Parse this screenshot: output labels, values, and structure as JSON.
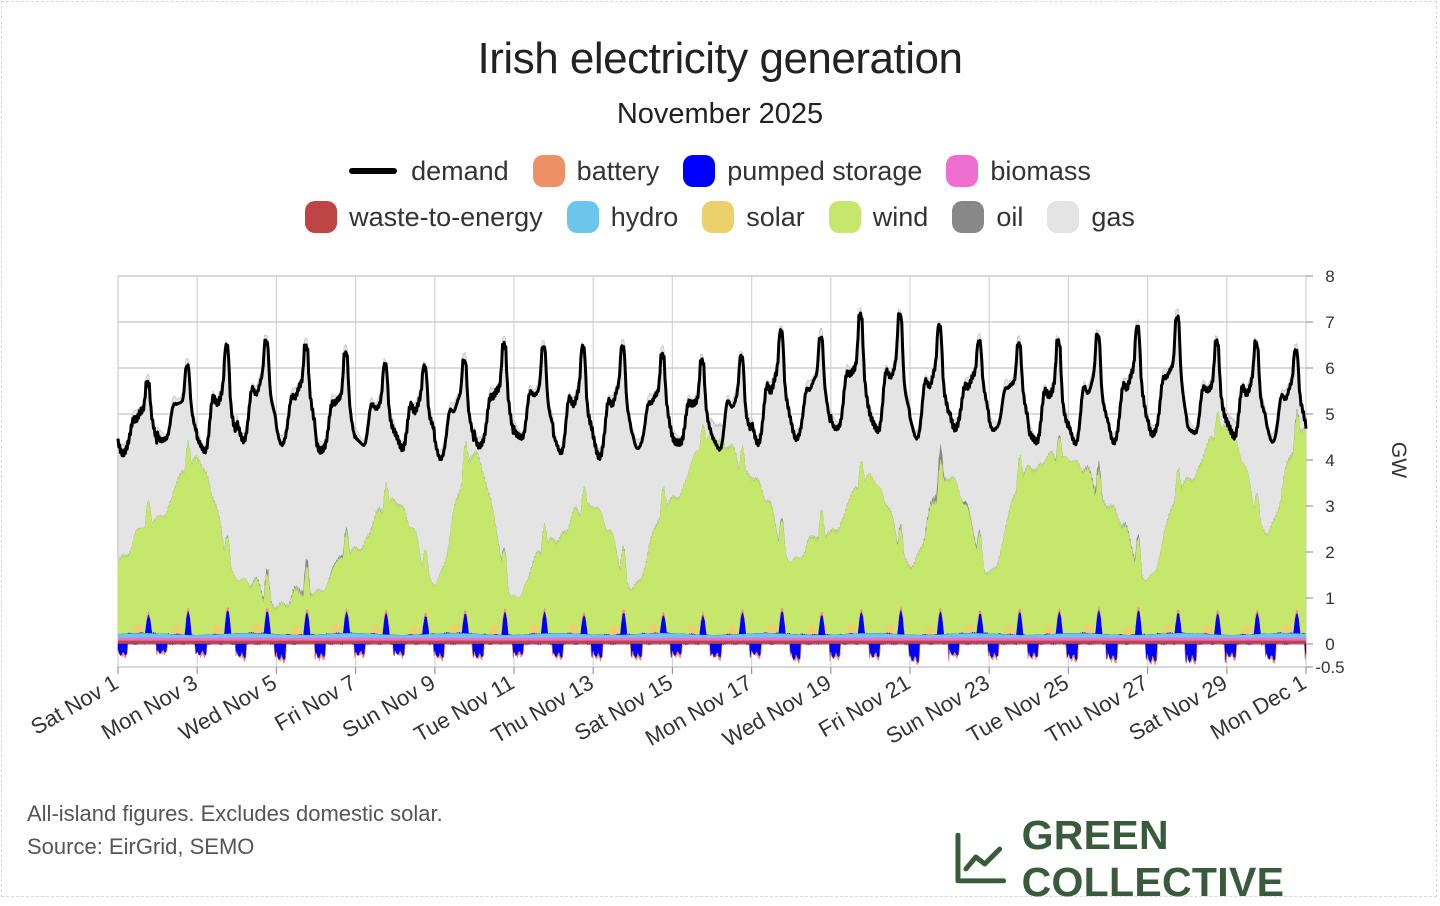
{
  "chart_data": {
    "type": "area",
    "title": "Irish electricity generation",
    "subtitle": "November 2025",
    "ylabel": "GW",
    "ylim": [
      -0.5,
      8
    ],
    "yticks": [
      8,
      7,
      6,
      5,
      4,
      3,
      2,
      1,
      0,
      -0.5
    ],
    "grid": true,
    "legend_position": "top-center",
    "xlim_days": [
      0,
      30
    ],
    "xticks": [
      {
        "label": "Sat Nov 1",
        "day": 0
      },
      {
        "label": "Mon Nov 3",
        "day": 2
      },
      {
        "label": "Wed Nov 5",
        "day": 4
      },
      {
        "label": "Fri Nov 7",
        "day": 6
      },
      {
        "label": "Sun Nov 9",
        "day": 8
      },
      {
        "label": "Tue Nov 11",
        "day": 10
      },
      {
        "label": "Thu Nov 13",
        "day": 12
      },
      {
        "label": "Sat Nov 15",
        "day": 14
      },
      {
        "label": "Mon Nov 17",
        "day": 16
      },
      {
        "label": "Wed Nov 19",
        "day": 18
      },
      {
        "label": "Fri Nov 21",
        "day": 20
      },
      {
        "label": "Sun Nov 23",
        "day": 22
      },
      {
        "label": "Tue Nov 25",
        "day": 24
      },
      {
        "label": "Thu Nov 27",
        "day": 26
      },
      {
        "label": "Sat Nov 29",
        "day": 28
      },
      {
        "label": "Mon Dec 1",
        "day": 30
      }
    ],
    "legend": [
      {
        "name": "demand",
        "color": "#000000",
        "kind": "line"
      },
      {
        "name": "battery",
        "color": "#ee9066"
      },
      {
        "name": "pumped storage",
        "color": "#0000ff"
      },
      {
        "name": "biomass",
        "color": "#ee6ecf"
      },
      {
        "name": "waste-to-energy",
        "color": "#bf4545"
      },
      {
        "name": "hydro",
        "color": "#6cc6ec"
      },
      {
        "name": "solar",
        "color": "#ebd06b"
      },
      {
        "name": "wind",
        "color": "#c5e86c"
      },
      {
        "name": "oil",
        "color": "#888888"
      },
      {
        "name": "gas",
        "color": "#e4e4e4"
      }
    ],
    "daily": {
      "days": [
        0,
        1,
        2,
        3,
        4,
        5,
        6,
        7,
        8,
        9,
        10,
        11,
        12,
        13,
        14,
        15,
        16,
        17,
        18,
        19,
        20,
        21,
        22,
        23,
        24,
        25,
        26,
        27,
        28,
        29,
        30
      ],
      "demand_peak": [
        5.7,
        6.0,
        6.4,
        6.6,
        6.5,
        6.3,
        6.0,
        6.0,
        6.2,
        6.5,
        6.4,
        6.4,
        6.5,
        6.3,
        6.1,
        6.2,
        6.8,
        6.7,
        7.1,
        7.1,
        6.9,
        6.6,
        6.5,
        6.5,
        6.7,
        6.9,
        7.1,
        6.5,
        6.5,
        6.4,
        6.5
      ],
      "demand_min": [
        3.9,
        4.1,
        3.8,
        4.1,
        4.0,
        3.8,
        4.0,
        4.0,
        3.7,
        3.9,
        4.1,
        3.8,
        3.7,
        3.9,
        4.0,
        3.9,
        4.0,
        4.1,
        4.2,
        4.2,
        4.1,
        4.4,
        4.3,
        4.0,
        4.0,
        4.0,
        4.1,
        4.2,
        4.2,
        4.1,
        4.5
      ],
      "wind": [
        1.6,
        2.5,
        3.8,
        1.2,
        0.6,
        0.9,
        1.8,
        2.9,
        1.1,
        3.9,
        0.8,
        2.0,
        2.8,
        1.0,
        2.9,
        4.3,
        3.4,
        1.6,
        2.2,
        3.4,
        1.5,
        3.4,
        1.3,
        3.6,
        3.8,
        2.8,
        1.2,
        3.3,
        4.5,
        2.2,
        4.5
      ],
      "gas": [
        2.9,
        3.3,
        2.7,
        3.9,
        3.1,
        3.0,
        3.2,
        3.4,
        3.3,
        2.9,
        3.5,
        3.1,
        2.9,
        3.6,
        2.5,
        2.1,
        3.1,
        4.2,
        4.0,
        3.4,
        5.2,
        3.1,
        4.6,
        1.9,
        1.9,
        2.9,
        4.6,
        2.2,
        1.5,
        3.4,
        1.5
      ],
      "oil": [
        0,
        0,
        0,
        0.05,
        0.2,
        0.3,
        0.1,
        0,
        0,
        0,
        0.1,
        0,
        0,
        0.05,
        0,
        0,
        0,
        0.1,
        0,
        0,
        0.1,
        0.6,
        0,
        0,
        0.1,
        0.3,
        0.1,
        0,
        0,
        0,
        0.1
      ],
      "pumped_storage_min": [
        -0.25,
        -0.2,
        -0.25,
        -0.3,
        -0.35,
        -0.3,
        -0.25,
        -0.25,
        -0.3,
        -0.3,
        -0.25,
        -0.3,
        -0.3,
        -0.3,
        -0.25,
        -0.3,
        -0.25,
        -0.35,
        -0.3,
        -0.3,
        -0.4,
        -0.25,
        -0.3,
        -0.3,
        -0.35,
        -0.35,
        -0.4,
        -0.4,
        -0.3,
        -0.35,
        -0.3
      ],
      "pumped_storage_max": [
        0.4,
        0.5,
        0.5,
        0.5,
        0.5,
        0.45,
        0.45,
        0.4,
        0.45,
        0.5,
        0.45,
        0.4,
        0.5,
        0.4,
        0.4,
        0.45,
        0.5,
        0.45,
        0.45,
        0.5,
        0.5,
        0.45,
        0.5,
        0.45,
        0.5,
        0.55,
        0.45,
        0.45,
        0.45,
        0.45,
        0.45
      ]
    }
  },
  "footnotes": {
    "line1": "All-island figures. Excludes domestic solar.",
    "line2": "Source: EirGrid, SEMO"
  },
  "brand": {
    "name": "GREEN COLLECTIVE",
    "icon": "line-chart-icon",
    "color": "#3a5a3c"
  }
}
